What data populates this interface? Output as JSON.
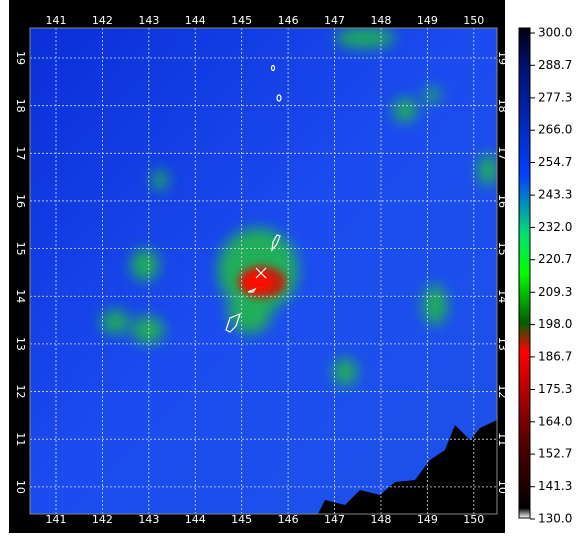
{
  "map": {
    "xlim": [
      140.44,
      150.5
    ],
    "ylim": [
      9.43,
      19.63
    ],
    "xticks": [
      141,
      142,
      143,
      144,
      145,
      146,
      147,
      148,
      149,
      150
    ],
    "yticks": [
      10,
      11,
      12,
      13,
      14,
      15,
      16,
      17,
      18,
      19
    ],
    "grid": true,
    "colorbar": {
      "lim": [
        130,
        300
      ],
      "ticks": [
        {
          "value": 300,
          "label": "300.0"
        },
        {
          "value": 288.7,
          "label": "288.7"
        },
        {
          "value": 277.3,
          "label": "277.3"
        },
        {
          "value": 266,
          "label": "266.0"
        },
        {
          "value": 254.7,
          "label": "254.7"
        },
        {
          "value": 243.3,
          "label": "243.3"
        },
        {
          "value": 232,
          "label": "232.0"
        },
        {
          "value": 220.7,
          "label": "220.7"
        },
        {
          "value": 209.3,
          "label": "209.3"
        },
        {
          "value": 198,
          "label": "198.0"
        },
        {
          "value": 186.7,
          "label": "186.7"
        },
        {
          "value": 175.3,
          "label": "175.3"
        },
        {
          "value": 164,
          "label": "164.0"
        },
        {
          "value": 152.7,
          "label": "152.7"
        },
        {
          "value": 141.3,
          "label": "141.3"
        },
        {
          "value": 130,
          "label": "130.0"
        }
      ]
    }
  }
}
